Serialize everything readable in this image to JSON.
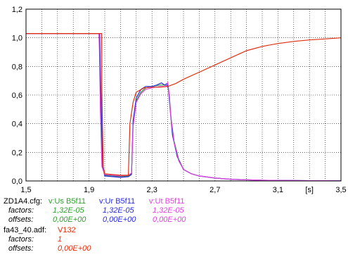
{
  "chart_data": {
    "type": "line",
    "xlim": [
      1.5,
      3.5
    ],
    "ylim": [
      0,
      1.2
    ],
    "xticks": [
      "1,5",
      "1,9",
      "2,3",
      "2,7",
      "3,1",
      "3,5"
    ],
    "xticks_values": [
      1.5,
      1.9,
      2.3,
      2.7,
      3.1,
      3.5
    ],
    "xunit_label": "[s]",
    "xunit_position": 3.3,
    "yticks": [
      "0,0",
      "0,2",
      "0,4",
      "0,6",
      "0,8",
      "1,0",
      "1,2"
    ],
    "yticks_values": [
      0,
      0.2,
      0.4,
      0.6,
      0.8,
      1.0,
      1.2
    ],
    "grid": true,
    "series": [
      {
        "name": "v:Us B5f11",
        "color": "#2ea02e",
        "x": [
          1.5,
          1.965,
          1.968,
          1.975,
          1.985,
          2.0,
          2.05,
          2.1,
          2.15,
          2.17,
          2.18,
          2.2,
          2.23,
          2.26,
          2.3,
          2.35,
          2.38,
          2.4,
          2.41,
          2.42,
          2.44,
          2.47,
          2.5,
          2.55,
          2.6,
          2.7,
          2.8,
          2.9,
          3.0,
          3.1,
          3.2,
          3.3,
          3.4,
          3.5
        ],
        "y": [
          1.03,
          1.03,
          0.9,
          0.5,
          0.1,
          0.04,
          0.035,
          0.03,
          0.035,
          0.05,
          0.4,
          0.56,
          0.62,
          0.65,
          0.66,
          0.67,
          0.67,
          0.66,
          0.6,
          0.45,
          0.28,
          0.15,
          0.08,
          0.05,
          0.035,
          0.02,
          0.012,
          0.008,
          0.005,
          0.004,
          0.003,
          0.002,
          0.002,
          0.001
        ]
      },
      {
        "name": "v:Ur B5f11",
        "color": "#2a2ae0",
        "x": [
          1.5,
          1.968,
          1.97,
          1.978,
          1.988,
          2.0,
          2.05,
          2.1,
          2.15,
          2.17,
          2.18,
          2.2,
          2.23,
          2.26,
          2.3,
          2.33,
          2.36,
          2.38,
          2.395,
          2.405,
          2.415,
          2.43,
          2.46,
          2.5,
          2.55,
          2.6,
          2.7,
          2.8,
          2.9,
          3.0,
          3.1,
          3.2,
          3.3,
          3.4,
          3.5
        ],
        "y": [
          1.03,
          1.03,
          0.9,
          0.5,
          0.1,
          0.035,
          0.03,
          0.025,
          0.03,
          0.045,
          0.42,
          0.58,
          0.64,
          0.66,
          0.66,
          0.67,
          0.685,
          0.67,
          0.68,
          0.64,
          0.5,
          0.32,
          0.17,
          0.08,
          0.05,
          0.035,
          0.02,
          0.012,
          0.008,
          0.005,
          0.004,
          0.003,
          0.002,
          0.002,
          0.001
        ]
      },
      {
        "name": "v:Ut B5f11",
        "color": "#e040e0",
        "x": [
          1.5,
          1.963,
          1.966,
          1.972,
          1.982,
          2.0,
          2.05,
          2.1,
          2.15,
          2.17,
          2.18,
          2.2,
          2.23,
          2.26,
          2.3,
          2.35,
          2.39,
          2.4,
          2.41,
          2.42,
          2.44,
          2.47,
          2.5,
          2.55,
          2.6,
          2.7,
          2.8,
          2.9,
          3.0,
          3.1,
          3.2,
          3.3,
          3.4,
          3.5
        ],
        "y": [
          1.03,
          1.03,
          0.9,
          0.5,
          0.1,
          0.045,
          0.04,
          0.035,
          0.04,
          0.055,
          0.38,
          0.55,
          0.61,
          0.64,
          0.65,
          0.66,
          0.66,
          0.69,
          0.6,
          0.44,
          0.27,
          0.14,
          0.08,
          0.05,
          0.035,
          0.02,
          0.012,
          0.008,
          0.005,
          0.004,
          0.003,
          0.002,
          0.002,
          0.001
        ]
      },
      {
        "name": "V132",
        "color": "#e03010",
        "x": [
          1.5,
          1.98,
          1.982,
          1.99,
          2.0,
          2.05,
          2.1,
          2.14,
          2.15,
          2.16,
          2.18,
          2.2,
          2.25,
          2.3,
          2.35,
          2.4,
          2.45,
          2.5,
          2.6,
          2.7,
          2.8,
          2.9,
          3.0,
          3.1,
          3.2,
          3.3,
          3.4,
          3.5
        ],
        "y": [
          1.03,
          1.03,
          0.6,
          0.1,
          0.05,
          0.045,
          0.04,
          0.04,
          0.04,
          0.4,
          0.55,
          0.62,
          0.65,
          0.655,
          0.655,
          0.66,
          0.68,
          0.71,
          0.76,
          0.81,
          0.86,
          0.91,
          0.94,
          0.96,
          0.975,
          0.985,
          0.992,
          1.0
        ]
      }
    ]
  },
  "legend": {
    "file1": "ZD1A4.cfg:",
    "file2": "fa43_40.adf:",
    "factors_label": "factors:",
    "offsets_label": "offsets:",
    "group1": [
      {
        "name": "v:Us B5f11",
        "factor": "1,32E-05",
        "offset": "0,00E+00",
        "color": "#2ea02e"
      },
      {
        "name": "v:Ur B5f11",
        "factor": "1,32E-05",
        "offset": "0,00E+00",
        "color": "#2a2ae0"
      },
      {
        "name": "v:Ut B5f11",
        "factor": "1,32E-05",
        "offset": "0,00E+00",
        "color": "#e040e0"
      }
    ],
    "group2": [
      {
        "name": "V132",
        "factor": "1",
        "offset": "0,00E+00",
        "color": "#e03010"
      }
    ]
  }
}
